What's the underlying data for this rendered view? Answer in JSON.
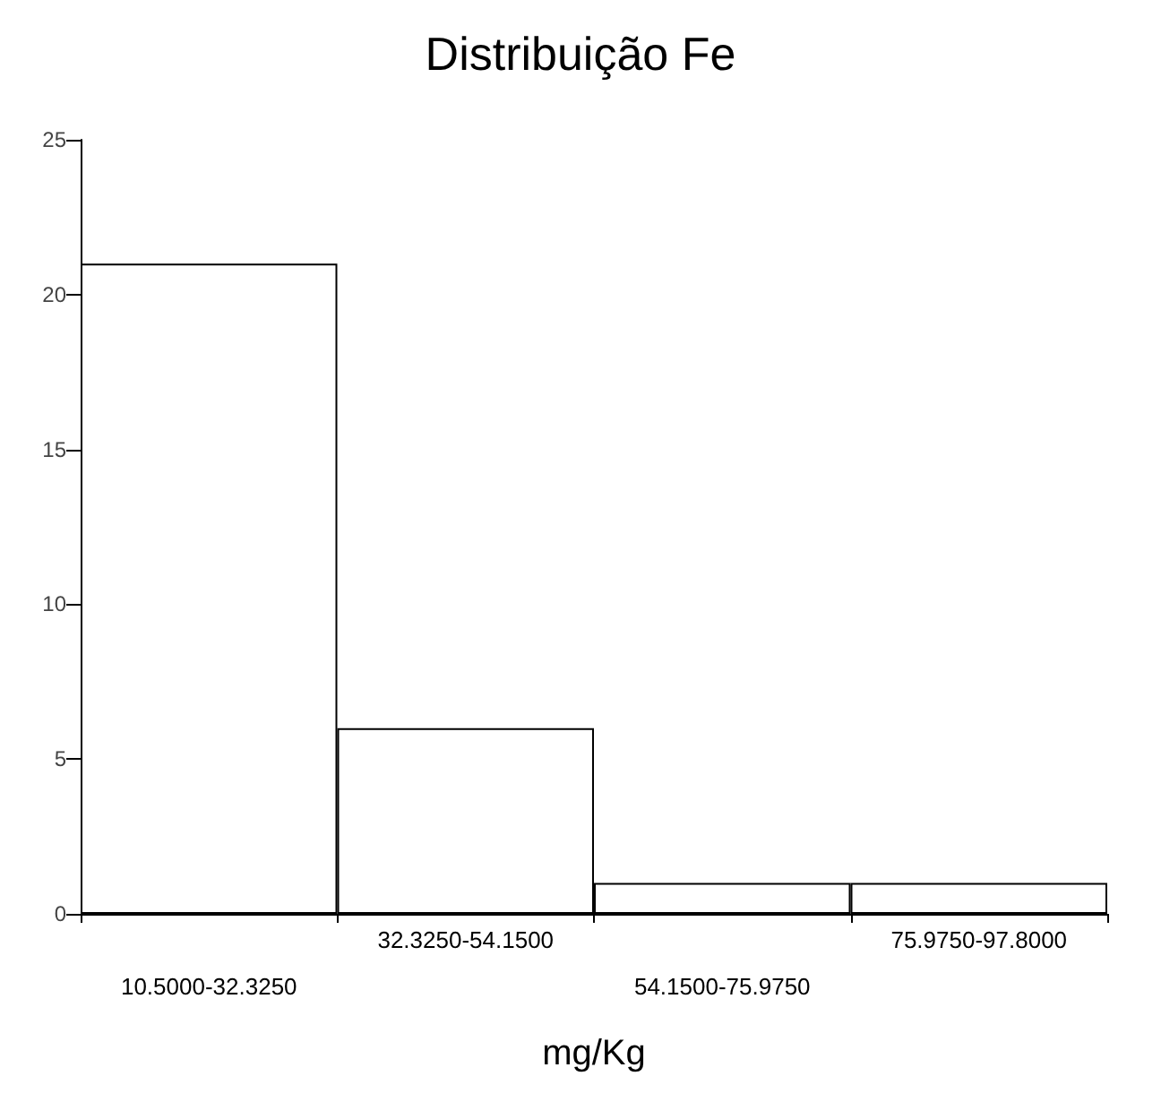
{
  "chart_data": {
    "type": "bar",
    "title": "Distribuição Fe",
    "xlabel": "mg/Kg",
    "categories": [
      "10.5000-32.3250",
      "32.3250-54.1500",
      "54.1500-75.9750",
      "75.9750-97.8000"
    ],
    "values": [
      21,
      6,
      1,
      1
    ],
    "color": "#ffffff",
    "ylim": [
      0,
      25
    ],
    "yticks": [
      0,
      5,
      10,
      15,
      20,
      25
    ],
    "grid": false
  }
}
